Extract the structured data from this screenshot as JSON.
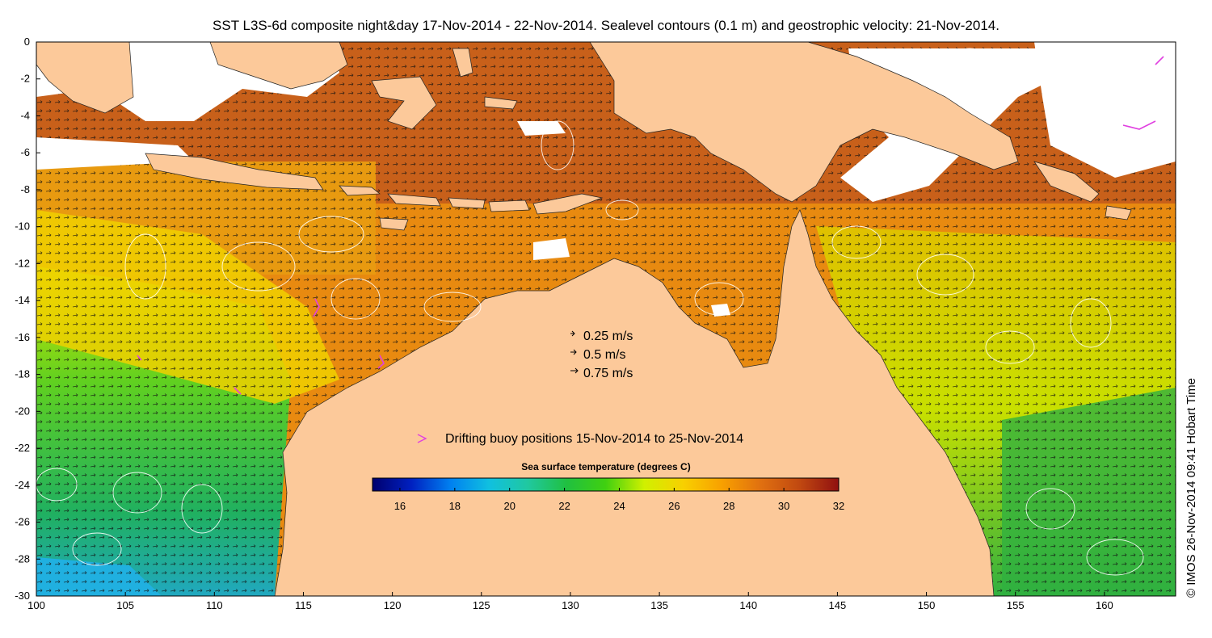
{
  "title": "SST L3S-6d composite night&day 17-Nov-2014 - 22-Nov-2014. Sealevel contours (0.1 m) and geostrophic velocity: 21-Nov-2014.",
  "credit": "© IMOS 26-Nov-2014 09:41 Hobart Time",
  "map": {
    "lon_range": [
      100,
      164
    ],
    "lat_range": [
      -30,
      0
    ],
    "x_ticks": [
      100,
      105,
      110,
      115,
      120,
      125,
      130,
      135,
      140,
      145,
      150,
      155,
      160
    ],
    "y_ticks": [
      0,
      -2,
      -4,
      -6,
      -8,
      -10,
      -12,
      -14,
      -16,
      -18,
      -20,
      -22,
      -24,
      -26,
      -28,
      -30
    ],
    "land_color": "#fcc99a",
    "cloud_color": "#ffffff"
  },
  "velocity_legend": [
    {
      "speed": 0.25,
      "label": "0.25 m/s"
    },
    {
      "speed": 0.5,
      "label": "0.5 m/s"
    },
    {
      "speed": 0.75,
      "label": "0.75 m/s"
    }
  ],
  "buoy_legend": {
    "label": "Drifting buoy positions 15-Nov-2014 to 25-Nov-2014",
    "color": "#e040e0"
  },
  "colorbar": {
    "title": "Sea surface temperature (degrees C)",
    "min": 15,
    "max": 32,
    "ticks": [
      16,
      18,
      20,
      22,
      24,
      26,
      28,
      30,
      32
    ],
    "stops": [
      "#00006e",
      "#0020c0",
      "#0080f0",
      "#10c0e0",
      "#20c8a0",
      "#20c040",
      "#40d010",
      "#d0f000",
      "#f8d000",
      "#f8a000",
      "#e07010",
      "#c04810",
      "#901010"
    ]
  }
}
